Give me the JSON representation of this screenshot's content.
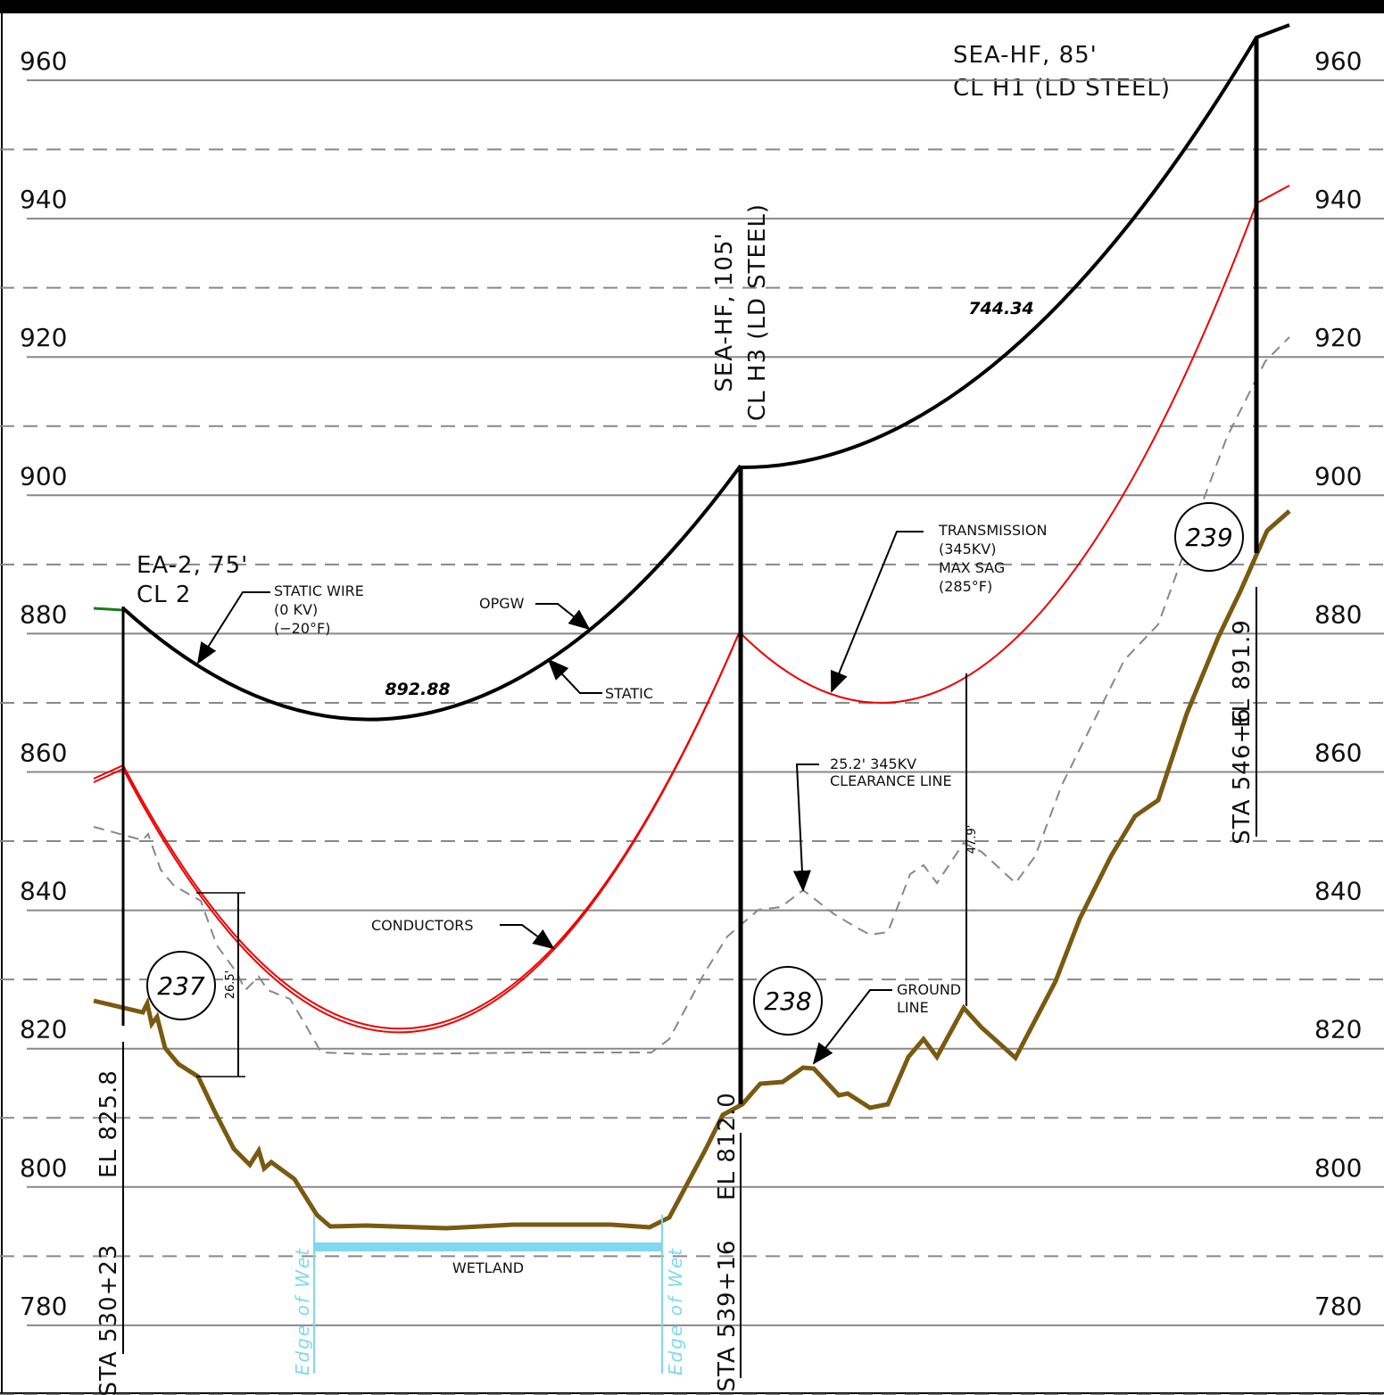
{
  "elevation_labels": [
    "960",
    "940",
    "920",
    "900",
    "880",
    "860",
    "840",
    "820",
    "800",
    "780"
  ],
  "structures": [
    {
      "number": "237",
      "type": "EA-2, 75'",
      "centerline": "CL 2",
      "station": "STA 530+23",
      "elevation": "EL 825.8"
    },
    {
      "number": "238",
      "type": "SEA-HF, 105'",
      "centerline": "CL H3 (LD STEEL)",
      "station": "STA 539+16",
      "elevation": "EL 812.0"
    },
    {
      "number": "239",
      "type": "SEA-HF, 85'",
      "centerline": "CL H1 (LD STEEL)",
      "station": "STA 546+6",
      "elevation": "EL 891.9"
    }
  ],
  "spans": [
    "892.88",
    "744.34"
  ],
  "callouts": {
    "static_wire": [
      "STATIC WIRE",
      "(0 KV)",
      "(−20°F)"
    ],
    "opgw": "OPGW",
    "static": "STATIC",
    "conductors": "CONDUCTORS",
    "transmission": [
      "TRANSMISSION",
      "(345KV)",
      "MAX SAG",
      "(285°F)"
    ],
    "clearance": [
      "25.2' 345KV",
      "CLEARANCE LINE"
    ],
    "ground": [
      "GROUND",
      "LINE"
    ],
    "wetland": "WETLAND",
    "edge_of_wet": "Edge of Wet"
  },
  "dimensions": [
    "26.5'",
    "47.9'"
  ]
}
